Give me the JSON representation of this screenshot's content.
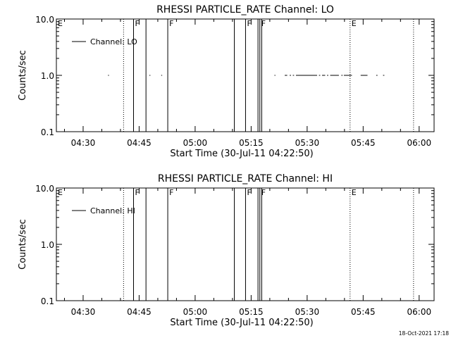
{
  "footer_timestamp": "18-Oct-2021 17:18",
  "chart_data": [
    {
      "type": "line",
      "title": "RHESSI PARTICLE_RATE Channel: LO",
      "xlabel": "Start Time (30-Jul-11 04:22:50)",
      "ylabel": "Counts/sec",
      "yscale": "log",
      "ylim": [
        0.1,
        10.0
      ],
      "yticks": [
        {
          "value": 0.1,
          "label": "0.1"
        },
        {
          "value": 1.0,
          "label": "1.0"
        },
        {
          "value": 10.0,
          "label": "10.0"
        }
      ],
      "xlim": [
        "04:22:50",
        "06:04:00"
      ],
      "xticks": [
        "04:30",
        "04:45",
        "05:00",
        "05:15",
        "05:30",
        "05:45",
        "06:00"
      ],
      "legend": {
        "placement": "top-left",
        "label": "Channel: LO"
      },
      "markers": [
        {
          "time": "04:22:50",
          "label": "E",
          "style": "dotted"
        },
        {
          "time": "04:40:50",
          "label": "",
          "style": "dotted"
        },
        {
          "time": "04:43:30",
          "label": "F",
          "style": "solid"
        },
        {
          "time": "04:46:50",
          "label": "",
          "style": "solid"
        },
        {
          "time": "04:52:40",
          "label": "F",
          "style": "solid"
        },
        {
          "time": "05:10:30",
          "label": "",
          "style": "solid"
        },
        {
          "time": "05:13:30",
          "label": "F",
          "style": "solid"
        },
        {
          "time": "05:16:50",
          "label": "",
          "style": "solid"
        },
        {
          "time": "05:17:20",
          "label": "F",
          "style": "solid"
        },
        {
          "time": "05:17:50",
          "label": "",
          "style": "solid"
        },
        {
          "time": "05:41:30",
          "label": "E",
          "style": "dotted"
        },
        {
          "time": "05:58:30",
          "label": "",
          "style": "dotted"
        }
      ],
      "series": [
        {
          "values": 1.0,
          "segments": [
            [
              "04:36:40",
              "04:36:55"
            ],
            [
              "04:47:45",
              "04:48:00"
            ],
            [
              "04:50:55",
              "04:51:10"
            ],
            [
              "05:21:15",
              "05:21:30"
            ],
            [
              "05:24:00",
              "05:24:40"
            ],
            [
              "05:25:20",
              "05:25:40"
            ],
            [
              "05:26:10",
              "05:26:30"
            ],
            [
              "05:27:00",
              "05:32:40"
            ],
            [
              "05:33:10",
              "05:33:30"
            ],
            [
              "05:34:00",
              "05:34:50"
            ],
            [
              "05:35:20",
              "05:35:40"
            ],
            [
              "05:36:10",
              "05:38:30"
            ],
            [
              "05:39:10",
              "05:39:30"
            ],
            [
              "05:39:50",
              "05:42:00"
            ],
            [
              "05:44:20",
              "05:46:10"
            ],
            [
              "05:48:30",
              "05:48:50"
            ],
            [
              "05:50:20",
              "05:50:40"
            ]
          ]
        }
      ]
    },
    {
      "type": "line",
      "title": "RHESSI PARTICLE_RATE Channel: HI",
      "xlabel": "Start Time (30-Jul-11 04:22:50)",
      "ylabel": "Counts/sec",
      "yscale": "log",
      "ylim": [
        0.1,
        10.0
      ],
      "yticks": [
        {
          "value": 0.1,
          "label": "0.1"
        },
        {
          "value": 1.0,
          "label": "1.0"
        },
        {
          "value": 10.0,
          "label": "10.0"
        }
      ],
      "xlim": [
        "04:22:50",
        "06:04:00"
      ],
      "xticks": [
        "04:30",
        "04:45",
        "05:00",
        "05:15",
        "05:30",
        "05:45",
        "06:00"
      ],
      "legend": {
        "placement": "top-left",
        "label": "Channel: HI"
      },
      "markers": [
        {
          "time": "04:22:50",
          "label": "E",
          "style": "dotted"
        },
        {
          "time": "04:40:50",
          "label": "",
          "style": "dotted"
        },
        {
          "time": "04:43:30",
          "label": "F",
          "style": "solid"
        },
        {
          "time": "04:46:50",
          "label": "",
          "style": "solid"
        },
        {
          "time": "04:52:40",
          "label": "F",
          "style": "solid"
        },
        {
          "time": "05:10:30",
          "label": "",
          "style": "solid"
        },
        {
          "time": "05:13:30",
          "label": "F",
          "style": "solid"
        },
        {
          "time": "05:16:50",
          "label": "",
          "style": "solid"
        },
        {
          "time": "05:17:20",
          "label": "F",
          "style": "solid"
        },
        {
          "time": "05:17:50",
          "label": "",
          "style": "solid"
        },
        {
          "time": "05:41:30",
          "label": "E",
          "style": "dotted"
        },
        {
          "time": "05:58:30",
          "label": "",
          "style": "dotted"
        }
      ],
      "series": []
    }
  ]
}
